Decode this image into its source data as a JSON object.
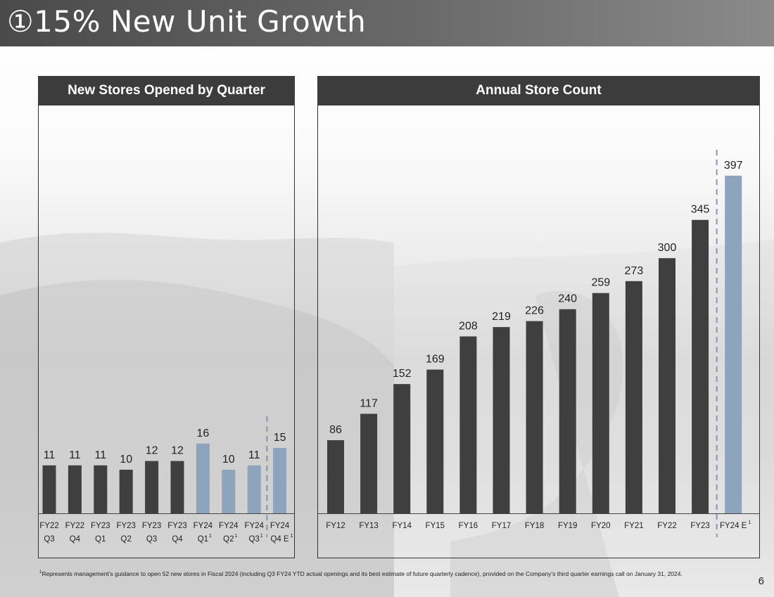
{
  "title": {
    "marker": "①",
    "text": "15% New Unit Growth"
  },
  "colors": {
    "actual": "#3f3f3f",
    "estimate": "#8ea3bc",
    "dashed": "#8596ad"
  },
  "chart_data": [
    {
      "type": "bar",
      "title": "New Stores Opened by Quarter",
      "categories": [
        {
          "line1": "FY22",
          "line2": "Q3",
          "sup": ""
        },
        {
          "line1": "FY22",
          "line2": "Q4",
          "sup": ""
        },
        {
          "line1": "FY23",
          "line2": "Q1",
          "sup": ""
        },
        {
          "line1": "FY23",
          "line2": "Q2",
          "sup": ""
        },
        {
          "line1": "FY23",
          "line2": "Q3",
          "sup": ""
        },
        {
          "line1": "FY23",
          "line2": "Q4",
          "sup": ""
        },
        {
          "line1": "FY24",
          "line2": "Q1",
          "sup": "1"
        },
        {
          "line1": "FY24",
          "line2": "Q2",
          "sup": "1"
        },
        {
          "line1": "FY24",
          "line2": "Q3",
          "sup": "1"
        },
        {
          "line1": "FY24",
          "line2": "Q4 E",
          "sup": "1"
        }
      ],
      "values": [
        11,
        11,
        11,
        10,
        12,
        12,
        16,
        10,
        11,
        15
      ],
      "highlight": [
        false,
        false,
        false,
        false,
        false,
        false,
        true,
        true,
        true,
        true
      ],
      "estimate_start_index": 9,
      "ylim": [
        0,
        100
      ],
      "xlabel": "",
      "ylabel": ""
    },
    {
      "type": "bar",
      "title": "Annual Store Count",
      "categories": [
        {
          "line1": "FY12",
          "sup": ""
        },
        {
          "line1": "FY13",
          "sup": ""
        },
        {
          "line1": "FY14",
          "sup": ""
        },
        {
          "line1": "FY15",
          "sup": ""
        },
        {
          "line1": "FY16",
          "sup": ""
        },
        {
          "line1": "FY17",
          "sup": ""
        },
        {
          "line1": "FY18",
          "sup": ""
        },
        {
          "line1": "FY19",
          "sup": ""
        },
        {
          "line1": "FY20",
          "sup": ""
        },
        {
          "line1": "FY21",
          "sup": ""
        },
        {
          "line1": "FY22",
          "sup": ""
        },
        {
          "line1": "FY23",
          "sup": ""
        },
        {
          "line1": "FY24 E",
          "sup": "1"
        }
      ],
      "values": [
        86,
        117,
        152,
        169,
        208,
        219,
        226,
        240,
        259,
        273,
        300,
        345,
        397
      ],
      "highlight": [
        false,
        false,
        false,
        false,
        false,
        false,
        false,
        false,
        false,
        false,
        false,
        false,
        true
      ],
      "estimate_start_index": 12,
      "ylim": [
        0,
        420
      ],
      "xlabel": "",
      "ylabel": ""
    }
  ],
  "footnote": {
    "sup": "1",
    "text": "Represents management’s guidance to open 52 new stores in Fiscal 2024 (including Q3 FY24 YTD actual openings and its best estimate of future quarterly cadence), provided on the Company’s third quarter earnings call on January 31, 2024."
  },
  "page_number": "6"
}
